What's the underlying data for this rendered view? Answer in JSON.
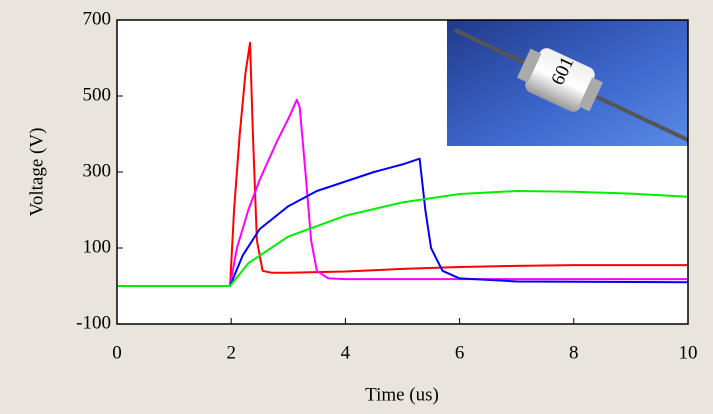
{
  "chart_data": {
    "type": "line",
    "xlabel": "Time (us)",
    "ylabel": "Voltage (V)",
    "xlim": [
      0,
      10
    ],
    "xticks": [
      0,
      2,
      4,
      6,
      8,
      10
    ],
    "ylim": [
      -100,
      700
    ],
    "yticks": [
      -100,
      100,
      300,
      500,
      700
    ],
    "series": [
      {
        "color": "#ff0000",
        "x": [
          0,
          1.98,
          2.05,
          2.15,
          2.25,
          2.33,
          2.38,
          2.45,
          2.55,
          2.7,
          3,
          4,
          5,
          6,
          7,
          8,
          10
        ],
        "values": [
          0,
          0,
          200,
          400,
          560,
          640,
          400,
          120,
          40,
          35,
          35,
          38,
          45,
          50,
          53,
          55,
          55
        ]
      },
      {
        "color": "#ff00ff",
        "x": [
          0,
          1.98,
          2.1,
          2.3,
          2.5,
          2.8,
          3.0,
          3.15,
          3.2,
          3.3,
          3.4,
          3.5,
          3.7,
          4,
          10
        ],
        "values": [
          0,
          0,
          100,
          200,
          280,
          380,
          440,
          490,
          470,
          300,
          120,
          40,
          20,
          18,
          18
        ]
      },
      {
        "color": "#0000ff",
        "x": [
          0,
          1.98,
          2.2,
          2.5,
          3,
          3.5,
          4,
          4.5,
          5,
          5.3,
          5.4,
          5.5,
          5.7,
          6,
          7,
          10
        ],
        "values": [
          0,
          0,
          80,
          150,
          210,
          250,
          275,
          300,
          320,
          335,
          200,
          100,
          40,
          20,
          12,
          10
        ]
      },
      {
        "color": "#00ee00",
        "x": [
          0,
          1.98,
          2.3,
          3,
          4,
          5,
          6,
          7,
          8,
          9,
          10
        ],
        "values": [
          0,
          0,
          60,
          130,
          185,
          220,
          242,
          250,
          248,
          243,
          235
        ]
      }
    ]
  }
}
